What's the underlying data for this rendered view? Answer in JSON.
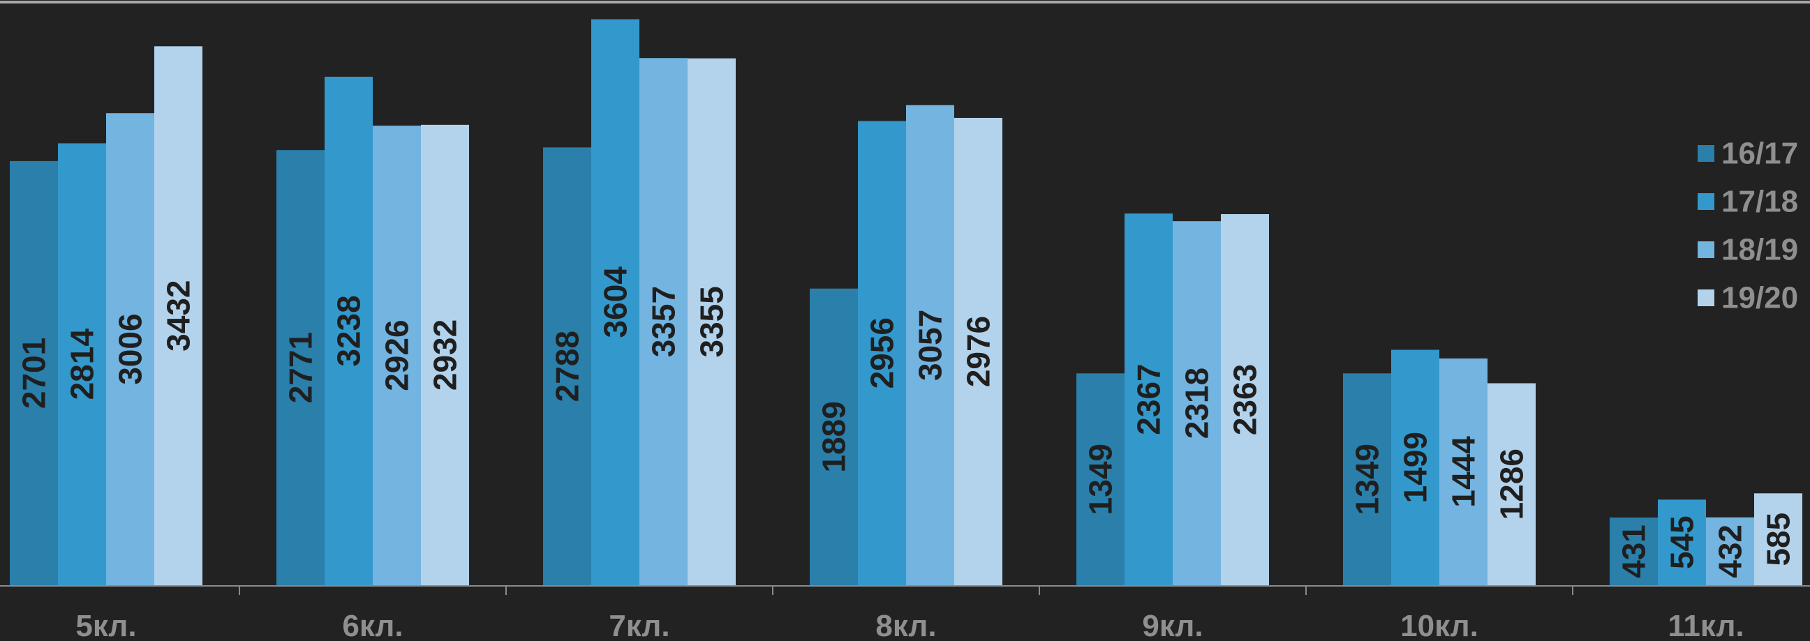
{
  "chart_data": {
    "type": "bar",
    "categories": [
      "5кл.",
      "6кл.",
      "7кл.",
      "8кл.",
      "9кл.",
      "10кл.",
      "11кл."
    ],
    "series": [
      {
        "name": "16/17",
        "color": "#2a7fab",
        "values": [
          2701,
          2771,
          2788,
          1889,
          1349,
          1349,
          431
        ]
      },
      {
        "name": "17/18",
        "color": "#3399cc",
        "values": [
          2814,
          3238,
          3604,
          2956,
          2367,
          1499,
          545
        ]
      },
      {
        "name": "18/19",
        "color": "#73b4e0",
        "values": [
          3006,
          2926,
          3357,
          3057,
          2318,
          1444,
          432
        ]
      },
      {
        "name": "19/20",
        "color": "#b3d3ec",
        "values": [
          3432,
          2932,
          3355,
          2976,
          2363,
          1286,
          585
        ]
      }
    ],
    "ylim": [
      0,
      3660
    ],
    "legend": "right",
    "grid": false
  }
}
